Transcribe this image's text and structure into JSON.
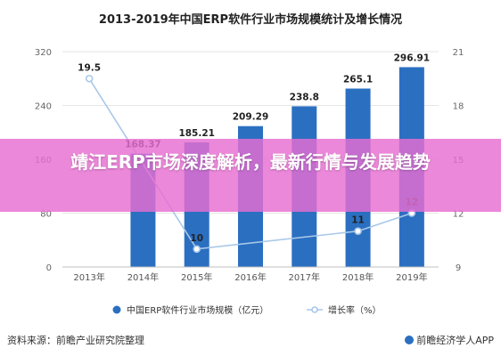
{
  "chart_data": {
    "type": "bar",
    "title": "2013-2019年中国ERP软件行业市场规模统计及增长情况",
    "categories": [
      "2013年",
      "2014年",
      "2015年",
      "2016年",
      "2017年",
      "2018年",
      "2019年"
    ],
    "series": [
      {
        "name": "中国ERP软件行业市场规模（亿元）",
        "type": "bar",
        "axis": "left",
        "values": [
          null,
          168.37,
          185.21,
          209.29,
          238.8,
          265.1,
          296.91
        ],
        "labels": [
          "",
          "168.37",
          "185.21",
          "209.29",
          "238.8",
          "265.1",
          "296.91"
        ],
        "color": "#2b6fc1"
      },
      {
        "name": "增长率（%）",
        "type": "line",
        "axis": "right",
        "values": [
          19.5,
          null,
          10,
          null,
          null,
          11,
          12
        ],
        "labels": [
          "19.5",
          "",
          "10",
          "",
          "",
          "11",
          "12"
        ],
        "color": "#a9c8e8"
      }
    ],
    "y_left": {
      "ylim": [
        0,
        320
      ],
      "ticks": [
        "0",
        "80",
        "160",
        "240",
        "320"
      ]
    },
    "y_right": {
      "ylim": [
        9,
        21
      ],
      "ticks": [
        "9",
        "12",
        "15",
        "18",
        "21"
      ]
    },
    "grid": true,
    "legend": "bottom"
  },
  "overlay": {
    "headline": "靖江ERP市场深度解析，最新行情与发展趋势"
  },
  "footer": {
    "source": "资料来源：前瞻产业研究院整理",
    "brand": "前瞻经济学人APP"
  },
  "colors": {
    "bar": "#2b6fc1",
    "line": "#a9c8e8",
    "banner": "#e86ed2"
  }
}
